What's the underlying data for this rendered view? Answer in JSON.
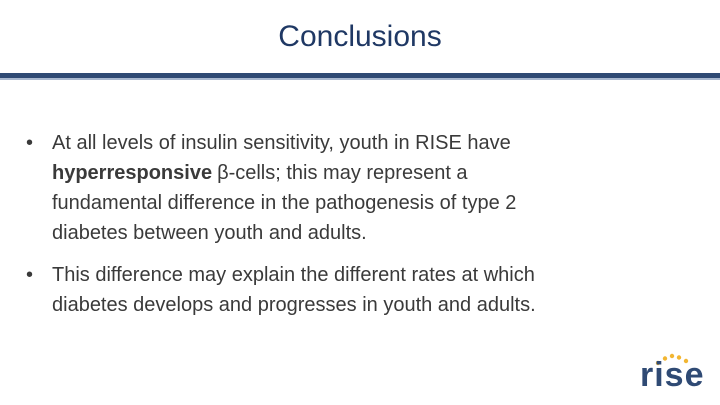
{
  "header": {
    "title": "Conclusions"
  },
  "bullets": [
    {
      "lines": [
        {
          "text": "At all levels of insulin sensitivity, youth in RISE have"
        },
        {
          "bold": "hyperresponsive",
          "text": "β-cells; this may represent a"
        },
        {
          "text": "fundamental difference in the pathogenesis of type 2"
        },
        {
          "text": "diabetes between youth and adults."
        }
      ]
    },
    {
      "lines": [
        {
          "text": "This difference may explain the different rates at which"
        },
        {
          "text": "diabetes develops and progresses in youth and adults."
        }
      ]
    }
  ],
  "logo": {
    "text": "rise"
  }
}
